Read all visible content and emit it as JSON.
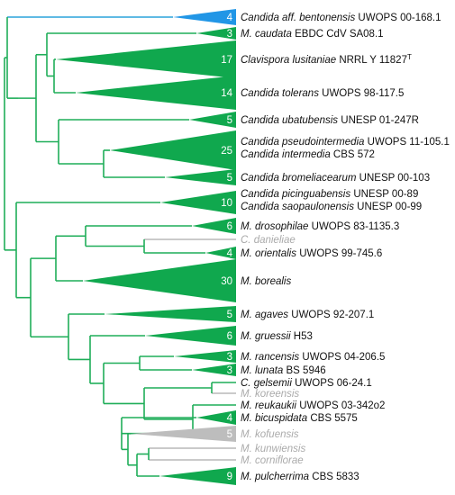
{
  "colors": {
    "branch": "#1fae59",
    "branch_blue": "#2aa3dc",
    "branch_grey": "#b9b9b9",
    "clade": "#10a84e",
    "clade_blue": "#2196e6",
    "clade_grey": "#bdbdbd",
    "text": "#111111",
    "text_grey": "#aaaaaa"
  },
  "tips": [
    {
      "id": "t1",
      "count": "4",
      "italic": "Candida aff. bentonensis",
      "strain": "UWOPS 00-168.1",
      "color": "blue"
    },
    {
      "id": "t2",
      "count": "3",
      "italic": "M. caudata",
      "strain": "EBDC CdV SA08.1",
      "color": "green"
    },
    {
      "id": "t3",
      "count": "17",
      "italic": "Clavispora lusitaniae",
      "strain": "NRRL Y 11827",
      "sup": "T",
      "color": "green"
    },
    {
      "id": "t4",
      "count": "14",
      "italic": "Candida tolerans",
      "strain": "UWOPS 98-117.5",
      "color": "green"
    },
    {
      "id": "t5",
      "count": "5",
      "italic": "Candida ubatubensis",
      "strain": "UNESP 01-247R",
      "color": "green"
    },
    {
      "id": "t6",
      "count": "25",
      "italic": "Candida pseudointermedia",
      "strain": "UWOPS 11-105.1",
      "italic2": "Candida intermedia",
      "strain2": "CBS 572",
      "color": "green"
    },
    {
      "id": "t7",
      "count": "5",
      "italic": "Candida bromeliacearum",
      "strain": "UNESP 00-103",
      "color": "green"
    },
    {
      "id": "t8",
      "count": "10",
      "italic": "Candida picinguabensis",
      "strain": "UNESP 00-89",
      "italic2": "Candida saopaulonensis",
      "strain2": "UNESP 00-99",
      "color": "green"
    },
    {
      "id": "t9",
      "count": "6",
      "italic": "M. drosophilae",
      "strain": "UWOPS 83-1135.3",
      "color": "green"
    },
    {
      "id": "t10",
      "count": "",
      "italic": "C. danieliae",
      "strain": "",
      "color": "grey"
    },
    {
      "id": "t11",
      "count": "4",
      "italic": "M. orientalis",
      "strain": "UWOPS 99-745.6",
      "color": "green"
    },
    {
      "id": "t12",
      "count": "30",
      "italic": "M. borealis",
      "strain": "",
      "color": "green"
    },
    {
      "id": "t13",
      "count": "5",
      "italic": "M. agaves",
      "strain": "UWOPS 92-207.1",
      "color": "green"
    },
    {
      "id": "t14",
      "count": "6",
      "italic": "M. gruessii",
      "strain": "H53",
      "color": "green"
    },
    {
      "id": "t15",
      "count": "3",
      "italic": "M. rancensis",
      "strain": "UWOPS 04-206.5",
      "color": "green"
    },
    {
      "id": "t16",
      "count": "3",
      "italic": "M. lunata",
      "strain": "BS 5946",
      "color": "green"
    },
    {
      "id": "t17",
      "count": "",
      "italic": "C. gelsemii",
      "strain": "UWOPS 06-24.1",
      "color": "green"
    },
    {
      "id": "t18",
      "count": "",
      "italic": "M. koreensis",
      "strain": "",
      "color": "grey"
    },
    {
      "id": "t19",
      "count": "",
      "italic": "M. reukaukii",
      "strain": "UWOPS 03-342o2",
      "color": "green"
    },
    {
      "id": "t20",
      "count": "4",
      "italic": "M. bicuspidata",
      "strain": "CBS 5575",
      "color": "green"
    },
    {
      "id": "t21",
      "count": "5",
      "italic": "M. kofuensis",
      "strain": "",
      "color": "grey"
    },
    {
      "id": "t22",
      "count": "",
      "italic": "M. kunwiensis",
      "strain": "",
      "color": "grey"
    },
    {
      "id": "t23",
      "count": "",
      "italic": "M. corniflorae",
      "strain": "",
      "color": "grey"
    },
    {
      "id": "t24",
      "count": "9",
      "italic": "M. pulcherrima",
      "strain": "CBS 5833",
      "color": "green"
    }
  ]
}
